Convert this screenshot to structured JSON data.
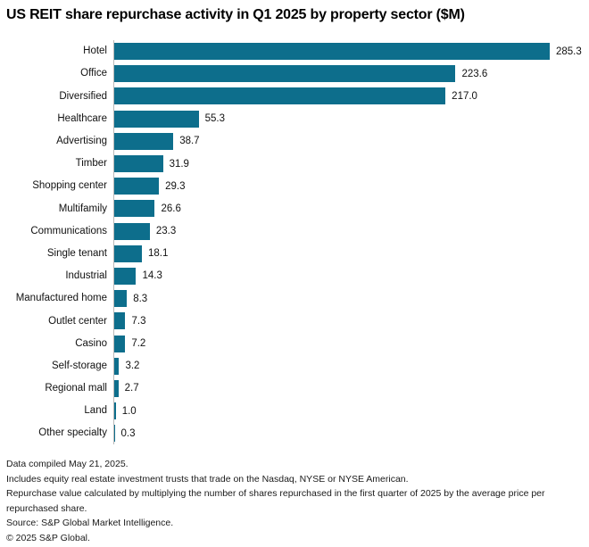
{
  "chart_data": {
    "type": "bar",
    "orientation": "horizontal",
    "title": "US REIT share repurchase activity in Q1 2025 by property sector ($M)",
    "categories": [
      "Hotel",
      "Office",
      "Diversified",
      "Healthcare",
      "Advertising",
      "Timber",
      "Shopping center",
      "Multifamily",
      "Communications",
      "Single tenant",
      "Industrial",
      "Manufactured home",
      "Outlet center",
      "Casino",
      "Self-storage",
      "Regional mall",
      "Land",
      "Other specialty"
    ],
    "values": [
      285.3,
      223.6,
      217.0,
      55.3,
      38.7,
      31.9,
      29.3,
      26.6,
      23.3,
      18.1,
      14.3,
      8.3,
      7.3,
      7.2,
      3.2,
      2.7,
      1.0,
      0.3
    ],
    "value_labels": [
      "285.3",
      "223.6",
      "217.0",
      "55.3",
      "38.7",
      "31.9",
      "29.3",
      "26.6",
      "23.3",
      "18.1",
      "14.3",
      "8.3",
      "7.3",
      "7.2",
      "3.2",
      "2.7",
      "1.0",
      "0.3"
    ],
    "xlabel": "",
    "ylabel": "",
    "xlim": [
      0,
      290
    ],
    "grid": false,
    "legend": "none",
    "value_label_position": "end-of-bar",
    "bar_color": "#0d6e8c",
    "axis_color": "#b9b9b9"
  },
  "footnotes": {
    "lines": [
      "Data compiled May 21, 2025.",
      "Includes equity real estate investment trusts that trade on the Nasdaq, NYSE or NYSE American.",
      "Repurchase value calculated by multiplying the number of shares repurchased in the first quarter of 2025 by the average price per repurchased share.",
      "Source: S&P Global Market Intelligence.",
      "© 2025 S&P Global."
    ]
  }
}
